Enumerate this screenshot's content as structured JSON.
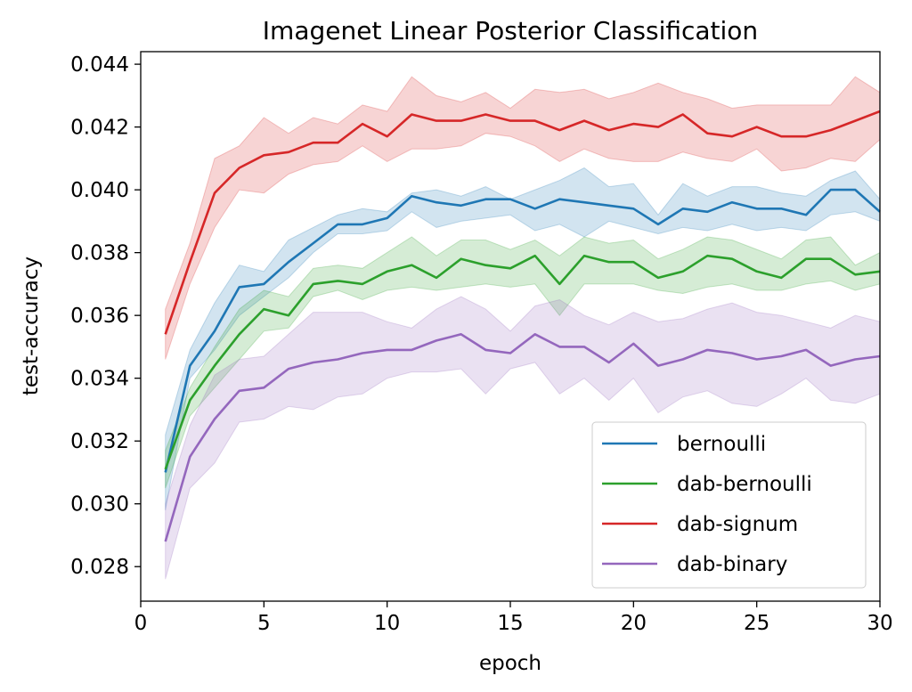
{
  "chart_data": {
    "type": "line",
    "title": "Imagenet Linear Posterior Classification",
    "xlabel": "epoch",
    "ylabel": "test-accuracy",
    "xlim": [
      0,
      30
    ],
    "ylim": [
      0.0269,
      0.0444
    ],
    "xticks": [
      0,
      5,
      10,
      15,
      20,
      25,
      30
    ],
    "yticks": [
      0.028,
      0.03,
      0.032,
      0.034,
      0.036,
      0.038,
      0.04,
      0.042,
      0.044
    ],
    "ytick_labels": [
      "0.028",
      "0.030",
      "0.032",
      "0.034",
      "0.036",
      "0.038",
      "0.040",
      "0.042",
      "0.044"
    ],
    "grid": false,
    "legend_position": "lower-right",
    "x": [
      1,
      2,
      3,
      4,
      5,
      6,
      7,
      8,
      9,
      10,
      11,
      12,
      13,
      14,
      15,
      16,
      17,
      18,
      19,
      20,
      21,
      22,
      23,
      24,
      25,
      26,
      27,
      28,
      29,
      30
    ],
    "series": [
      {
        "name": "bernoulli",
        "color": "#1f77b4",
        "values": [
          0.031,
          0.0344,
          0.0355,
          0.0369,
          0.037,
          0.0377,
          0.0383,
          0.0389,
          0.0389,
          0.0391,
          0.0398,
          0.0396,
          0.0395,
          0.0397,
          0.0397,
          0.0394,
          0.0397,
          0.0396,
          0.0395,
          0.0394,
          0.0389,
          0.0394,
          0.0393,
          0.0396,
          0.0394,
          0.0394,
          0.0392,
          0.04,
          0.04,
          0.0393
        ],
        "lower": [
          0.0298,
          0.034,
          0.0349,
          0.036,
          0.0366,
          0.0372,
          0.038,
          0.0386,
          0.0386,
          0.0387,
          0.0393,
          0.0388,
          0.039,
          0.0391,
          0.0392,
          0.0387,
          0.0389,
          0.0385,
          0.039,
          0.0388,
          0.0386,
          0.0388,
          0.0387,
          0.0389,
          0.0387,
          0.0388,
          0.0387,
          0.0392,
          0.0393,
          0.039
        ],
        "upper": [
          0.0322,
          0.0349,
          0.0364,
          0.0376,
          0.0374,
          0.0384,
          0.0388,
          0.0392,
          0.0394,
          0.0393,
          0.0399,
          0.04,
          0.0398,
          0.0401,
          0.0397,
          0.04,
          0.0403,
          0.0407,
          0.0401,
          0.0402,
          0.0392,
          0.0402,
          0.0398,
          0.0401,
          0.0401,
          0.0399,
          0.0398,
          0.0403,
          0.0406,
          0.0397
        ]
      },
      {
        "name": "dab-bernoulli",
        "color": "#2ca02c",
        "values": [
          0.0311,
          0.0333,
          0.0344,
          0.0354,
          0.0362,
          0.036,
          0.037,
          0.0371,
          0.037,
          0.0374,
          0.0376,
          0.0372,
          0.0378,
          0.0376,
          0.0375,
          0.0379,
          0.037,
          0.0379,
          0.0377,
          0.0377,
          0.0372,
          0.0374,
          0.0379,
          0.0378,
          0.0374,
          0.0372,
          0.0378,
          0.0378,
          0.0373,
          0.0374
        ],
        "lower": [
          0.0305,
          0.0328,
          0.0337,
          0.0346,
          0.0355,
          0.0356,
          0.0366,
          0.0368,
          0.0365,
          0.0368,
          0.0369,
          0.0368,
          0.0369,
          0.037,
          0.0369,
          0.037,
          0.036,
          0.037,
          0.037,
          0.037,
          0.0368,
          0.0367,
          0.0369,
          0.037,
          0.0368,
          0.0368,
          0.037,
          0.0371,
          0.0368,
          0.037
        ],
        "upper": [
          0.0317,
          0.0337,
          0.035,
          0.0362,
          0.0368,
          0.0366,
          0.0375,
          0.0376,
          0.0375,
          0.038,
          0.0385,
          0.0379,
          0.0384,
          0.0384,
          0.0381,
          0.0384,
          0.0379,
          0.0385,
          0.0383,
          0.0384,
          0.0378,
          0.0381,
          0.0385,
          0.0384,
          0.0381,
          0.0378,
          0.0384,
          0.0385,
          0.0376,
          0.038
        ]
      },
      {
        "name": "dab-signum",
        "color": "#d62728",
        "values": [
          0.0354,
          0.0377,
          0.0399,
          0.0407,
          0.0411,
          0.0412,
          0.0415,
          0.0415,
          0.0421,
          0.0417,
          0.0424,
          0.0422,
          0.0422,
          0.0424,
          0.0422,
          0.0422,
          0.0419,
          0.0422,
          0.0419,
          0.0421,
          0.042,
          0.0424,
          0.0418,
          0.0417,
          0.042,
          0.0417,
          0.0417,
          0.0419,
          0.0422,
          0.0425
        ],
        "lower": [
          0.0346,
          0.037,
          0.0388,
          0.04,
          0.0399,
          0.0405,
          0.0408,
          0.0409,
          0.0414,
          0.0409,
          0.0413,
          0.0413,
          0.0414,
          0.0418,
          0.0417,
          0.0414,
          0.0409,
          0.0413,
          0.041,
          0.0409,
          0.0409,
          0.0412,
          0.041,
          0.0409,
          0.0413,
          0.0406,
          0.0407,
          0.041,
          0.0409,
          0.0416
        ],
        "upper": [
          0.0362,
          0.0383,
          0.041,
          0.0414,
          0.0423,
          0.0418,
          0.0423,
          0.0421,
          0.0427,
          0.0425,
          0.0436,
          0.043,
          0.0428,
          0.0431,
          0.0426,
          0.0432,
          0.0431,
          0.0432,
          0.0429,
          0.0431,
          0.0434,
          0.0431,
          0.0429,
          0.0426,
          0.0427,
          0.0427,
          0.0427,
          0.0427,
          0.0436,
          0.0431
        ]
      },
      {
        "name": "dab-binary",
        "color": "#9467bd",
        "values": [
          0.0288,
          0.0315,
          0.0327,
          0.0336,
          0.0337,
          0.0343,
          0.0345,
          0.0346,
          0.0348,
          0.0349,
          0.0349,
          0.0352,
          0.0354,
          0.0349,
          0.0348,
          0.0354,
          0.035,
          0.035,
          0.0345,
          0.0351,
          0.0344,
          0.0346,
          0.0349,
          0.0348,
          0.0346,
          0.0347,
          0.0349,
          0.0344,
          0.0346,
          0.0347
        ],
        "lower": [
          0.0276,
          0.0305,
          0.0313,
          0.0326,
          0.0327,
          0.0331,
          0.033,
          0.0334,
          0.0335,
          0.034,
          0.0342,
          0.0342,
          0.0343,
          0.0335,
          0.0343,
          0.0345,
          0.0335,
          0.034,
          0.0333,
          0.034,
          0.0329,
          0.0334,
          0.0336,
          0.0332,
          0.0331,
          0.0335,
          0.034,
          0.0333,
          0.0332,
          0.0335
        ],
        "upper": [
          0.03,
          0.0325,
          0.0341,
          0.0346,
          0.0347,
          0.0354,
          0.0361,
          0.0361,
          0.0361,
          0.0358,
          0.0356,
          0.0362,
          0.0366,
          0.0362,
          0.0355,
          0.0363,
          0.0365,
          0.036,
          0.0357,
          0.0361,
          0.0358,
          0.0359,
          0.0362,
          0.0364,
          0.0361,
          0.036,
          0.0358,
          0.0356,
          0.036,
          0.0358
        ]
      }
    ]
  }
}
